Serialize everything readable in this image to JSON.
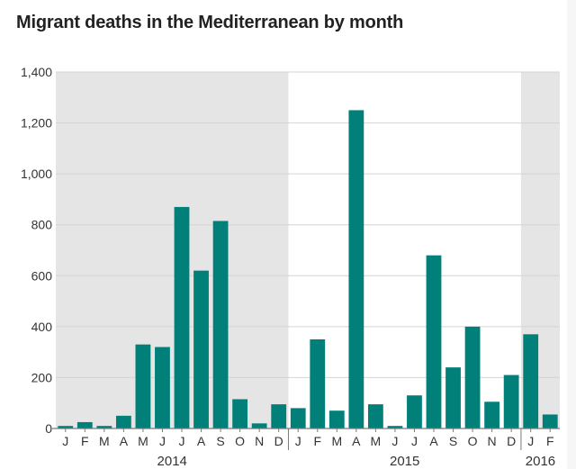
{
  "title": "Migrant deaths in the Mediterranean by month",
  "colors": {
    "bar": "#008079",
    "year_band": "#e5e5e5",
    "grid": "#d4d4d4",
    "axis": "#7a7a7a",
    "text": "#333333"
  },
  "chart_data": {
    "type": "bar",
    "title": "Migrant deaths in the Mediterranean by month",
    "xlabel": "",
    "ylabel": "",
    "ylim": [
      0,
      1400
    ],
    "yticks": [
      "0",
      "200",
      "400",
      "600",
      "800",
      "1,000",
      "1,200",
      "1,400"
    ],
    "ytick_values": [
      0,
      200,
      400,
      600,
      800,
      1000,
      1200,
      1400
    ],
    "grid": true,
    "categories": [
      "J",
      "F",
      "M",
      "A",
      "M",
      "J",
      "J",
      "A",
      "S",
      "O",
      "N",
      "D",
      "J",
      "F",
      "M",
      "A",
      "M",
      "J",
      "J",
      "A",
      "S",
      "O",
      "N",
      "D",
      "J",
      "F"
    ],
    "values": [
      10,
      25,
      10,
      50,
      330,
      320,
      870,
      620,
      815,
      115,
      20,
      95,
      80,
      350,
      70,
      1250,
      95,
      10,
      130,
      680,
      240,
      400,
      105,
      210,
      370,
      55
    ],
    "years": [
      {
        "label": "2014",
        "start": 0,
        "count": 12,
        "shaded": true
      },
      {
        "label": "2015",
        "start": 12,
        "count": 12,
        "shaded": false
      },
      {
        "label": "2016",
        "start": 24,
        "count": 2,
        "shaded": true
      }
    ]
  }
}
